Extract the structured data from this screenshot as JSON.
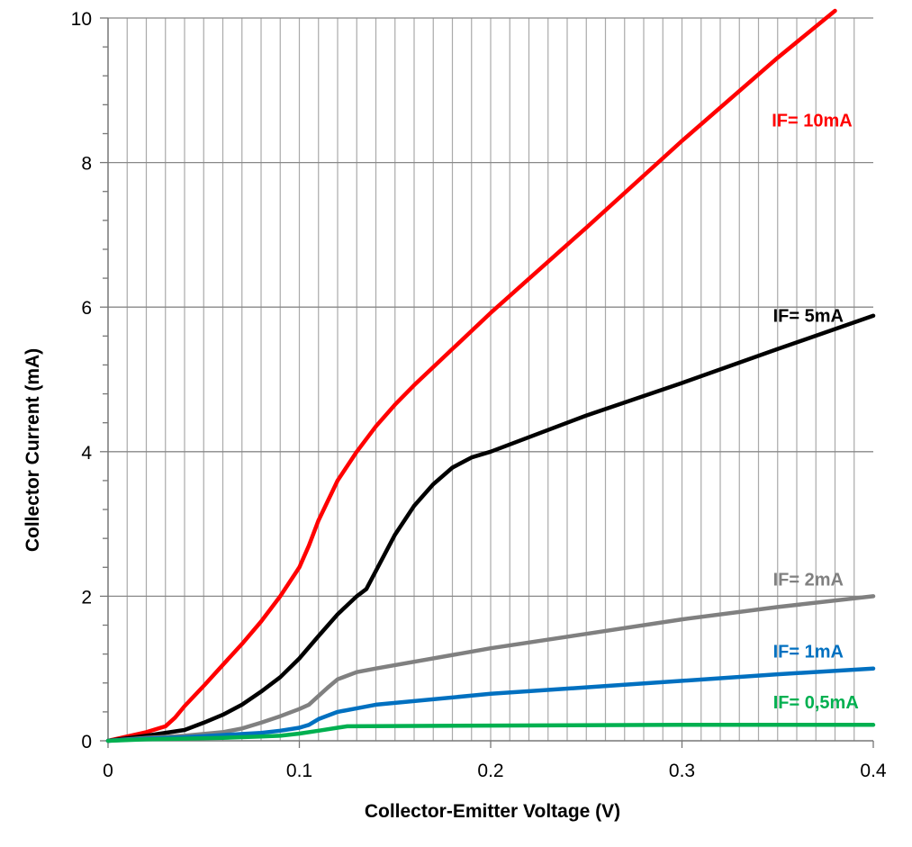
{
  "chart_data": {
    "type": "line",
    "title": "",
    "xlabel": "Collector-Emitter Voltage (V)",
    "ylabel": "Collector Current  (mA)",
    "xlim": [
      0,
      0.4
    ],
    "ylim": [
      0,
      10
    ],
    "x_ticks": [
      "0",
      "0.1",
      "0.2",
      "0.3",
      "0.4"
    ],
    "y_ticks": [
      "0",
      "2",
      "4",
      "6",
      "8",
      "10"
    ],
    "grid": true,
    "legend": "inline labels",
    "series": [
      {
        "name": "IF= 10mA",
        "color": "#ff0000",
        "x": [
          0,
          0.01,
          0.02,
          0.03,
          0.035,
          0.04,
          0.05,
          0.06,
          0.07,
          0.08,
          0.09,
          0.1,
          0.105,
          0.11,
          0.12,
          0.13,
          0.14,
          0.15,
          0.16,
          0.18,
          0.2,
          0.25,
          0.3,
          0.35,
          0.38
        ],
        "y": [
          0,
          0.06,
          0.12,
          0.2,
          0.32,
          0.48,
          0.76,
          1.05,
          1.34,
          1.65,
          2.0,
          2.4,
          2.7,
          3.05,
          3.6,
          4.0,
          4.35,
          4.65,
          4.92,
          5.42,
          5.92,
          7.1,
          8.3,
          9.45,
          10.1
        ]
      },
      {
        "name": "IF= 5mA",
        "color": "#000000",
        "x": [
          0,
          0.02,
          0.04,
          0.05,
          0.06,
          0.07,
          0.08,
          0.09,
          0.1,
          0.11,
          0.12,
          0.13,
          0.135,
          0.14,
          0.15,
          0.16,
          0.17,
          0.18,
          0.19,
          0.2,
          0.25,
          0.3,
          0.35,
          0.4
        ],
        "y": [
          0,
          0.07,
          0.15,
          0.25,
          0.36,
          0.5,
          0.68,
          0.88,
          1.14,
          1.45,
          1.75,
          2.0,
          2.1,
          2.35,
          2.85,
          3.25,
          3.55,
          3.78,
          3.92,
          4.0,
          4.5,
          4.95,
          5.42,
          5.88
        ]
      },
      {
        "name": "IF= 2mA",
        "color": "#808080",
        "x": [
          0,
          0.02,
          0.04,
          0.06,
          0.07,
          0.08,
          0.09,
          0.1,
          0.105,
          0.11,
          0.115,
          0.12,
          0.13,
          0.14,
          0.2,
          0.25,
          0.3,
          0.35,
          0.4
        ],
        "y": [
          0,
          0.04,
          0.07,
          0.12,
          0.17,
          0.25,
          0.34,
          0.44,
          0.5,
          0.62,
          0.74,
          0.85,
          0.95,
          1.0,
          1.28,
          1.48,
          1.68,
          1.85,
          2.0
        ]
      },
      {
        "name": "IF= 1mA",
        "color": "#0070c0",
        "x": [
          0,
          0.02,
          0.04,
          0.06,
          0.08,
          0.09,
          0.1,
          0.105,
          0.11,
          0.12,
          0.13,
          0.14,
          0.2,
          0.25,
          0.3,
          0.35,
          0.4
        ],
        "y": [
          0,
          0.03,
          0.05,
          0.08,
          0.11,
          0.14,
          0.18,
          0.22,
          0.3,
          0.4,
          0.45,
          0.5,
          0.65,
          0.74,
          0.83,
          0.92,
          1.0
        ]
      },
      {
        "name": "IF= 0,5mA",
        "color": "#00b050",
        "x": [
          0,
          0.02,
          0.04,
          0.06,
          0.08,
          0.09,
          0.1,
          0.11,
          0.12,
          0.125,
          0.2,
          0.3,
          0.4
        ],
        "y": [
          0,
          0.02,
          0.03,
          0.04,
          0.06,
          0.07,
          0.1,
          0.14,
          0.18,
          0.2,
          0.21,
          0.22,
          0.22
        ]
      }
    ],
    "annotations": [
      {
        "text": "IF= 10mA",
        "color": "#ff0000",
        "at": [
          0.368,
          8.5
        ]
      },
      {
        "text": "IF= 5mA",
        "color": "#000000",
        "at": [
          0.366,
          5.8
        ]
      },
      {
        "text": "IF= 2mA",
        "color": "#808080",
        "at": [
          0.366,
          2.15
        ]
      },
      {
        "text": "IF= 1mA",
        "color": "#0070c0",
        "at": [
          0.366,
          1.15
        ]
      },
      {
        "text": "IF= 0,5mA",
        "color": "#00b050",
        "at": [
          0.37,
          0.45
        ]
      }
    ]
  }
}
